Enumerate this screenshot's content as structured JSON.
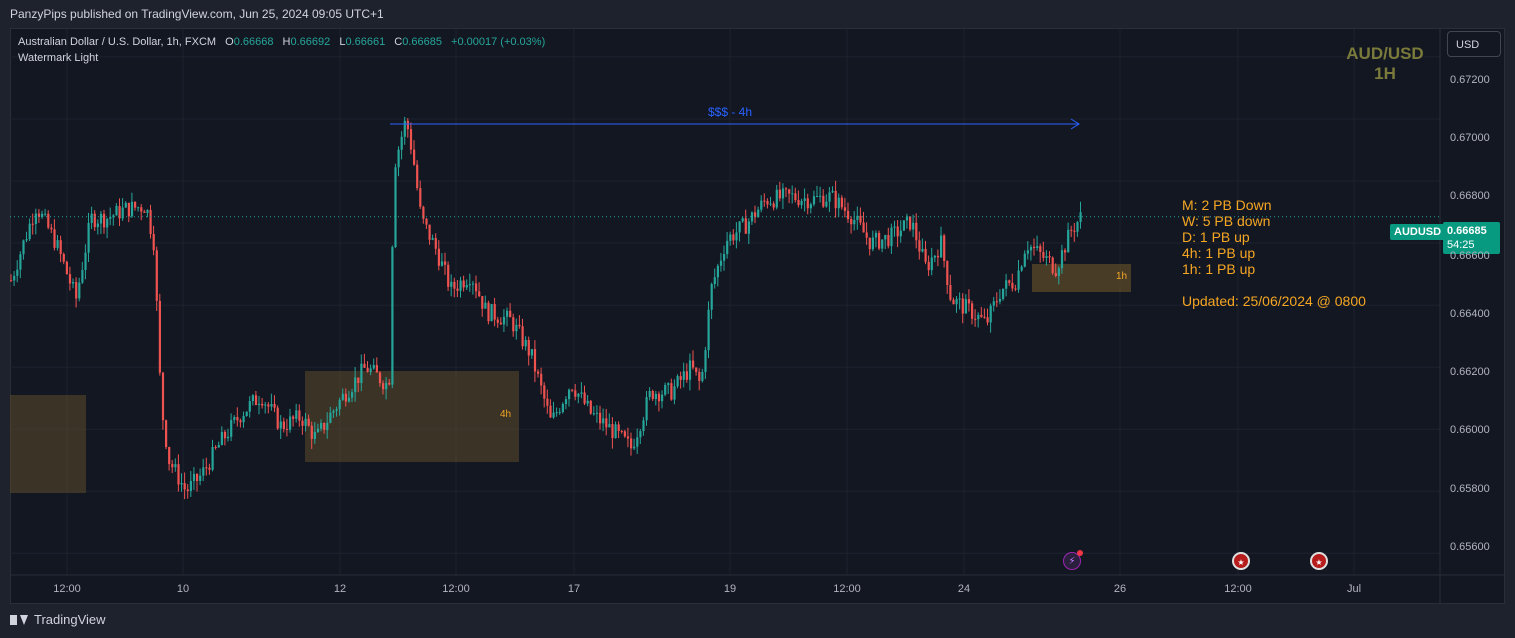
{
  "banner": {
    "text": "PanzyPips published on TradingView.com, Jun 25, 2024 09:05 UTC+1"
  },
  "legend": {
    "symbol": "Australian Dollar / U.S. Dollar, 1h, FXCM",
    "open_key": "O",
    "open": "0.66668",
    "high_key": "H",
    "high": "0.66692",
    "low_key": "L",
    "low": "0.66661",
    "close_key": "C",
    "close": "0.66685",
    "change": "+0.00017 (+0.03%)",
    "indicator": "Watermark Light"
  },
  "watermark": {
    "line1": "AUD/USD",
    "line2": "1H"
  },
  "currency_button": "USD",
  "notes": {
    "lines": [
      "M: 2 PB Down",
      "W: 5 PB down",
      "D: 1 PB up",
      "4h: 1 PB up",
      "1h: 1 PB up"
    ],
    "updated": "Updated: 25/06/2024 @ 0800"
  },
  "price_tag": {
    "symbol": "AUDUSD",
    "price": "0.66685",
    "countdown": "54:25"
  },
  "annotation": {
    "label": "$$$ - 4h"
  },
  "boxes": {
    "box_4h_label": "4h",
    "box_1h_label": "1h"
  },
  "y_axis": [
    "0.67200",
    "0.67000",
    "0.66800",
    "0.66600",
    "0.66400",
    "0.66200",
    "0.66000",
    "0.65800",
    "0.65600"
  ],
  "x_axis": [
    "12:00",
    "10",
    "12",
    "12:00",
    "17",
    "19",
    "12:00",
    "24",
    "26",
    "12:00",
    "Jul"
  ],
  "footer": {
    "brand": "TradingView"
  },
  "colors": {
    "up": "#26a69a",
    "down": "#ef5350",
    "box": "#5c4a2a",
    "annotation": "#2962ff",
    "notes": "#f5a623"
  },
  "chart_data": {
    "type": "candlestick",
    "ylim": [
      0.6553,
      0.6729
    ],
    "price_line": 0.66685,
    "anchors": [
      {
        "x": 0,
        "y": 0.6648
      },
      {
        "x": 25,
        "y": 0.6672
      },
      {
        "x": 45,
        "y": 0.666
      },
      {
        "x": 65,
        "y": 0.6642
      },
      {
        "x": 80,
        "y": 0.6668
      },
      {
        "x": 95,
        "y": 0.6668
      },
      {
        "x": 115,
        "y": 0.6671
      },
      {
        "x": 135,
        "y": 0.6672
      },
      {
        "x": 143,
        "y": 0.666
      },
      {
        "x": 150,
        "y": 0.6608
      },
      {
        "x": 158,
        "y": 0.659
      },
      {
        "x": 175,
        "y": 0.658
      },
      {
        "x": 190,
        "y": 0.6585
      },
      {
        "x": 210,
        "y": 0.6596
      },
      {
        "x": 230,
        "y": 0.6605
      },
      {
        "x": 250,
        "y": 0.6611
      },
      {
        "x": 270,
        "y": 0.6601
      },
      {
        "x": 290,
        "y": 0.6604
      },
      {
        "x": 305,
        "y": 0.6597
      },
      {
        "x": 320,
        "y": 0.6605
      },
      {
        "x": 335,
        "y": 0.6612
      },
      {
        "x": 355,
        "y": 0.662
      },
      {
        "x": 378,
        "y": 0.6614
      },
      {
        "x": 383,
        "y": 0.6685
      },
      {
        "x": 395,
        "y": 0.67
      },
      {
        "x": 402,
        "y": 0.6688
      },
      {
        "x": 410,
        "y": 0.6668
      },
      {
        "x": 425,
        "y": 0.6658
      },
      {
        "x": 440,
        "y": 0.6645
      },
      {
        "x": 460,
        "y": 0.665
      },
      {
        "x": 475,
        "y": 0.6638
      },
      {
        "x": 500,
        "y": 0.6635
      },
      {
        "x": 520,
        "y": 0.6624
      },
      {
        "x": 540,
        "y": 0.6602
      },
      {
        "x": 560,
        "y": 0.6615
      },
      {
        "x": 580,
        "y": 0.6605
      },
      {
        "x": 600,
        "y": 0.66
      },
      {
        "x": 620,
        "y": 0.6594
      },
      {
        "x": 640,
        "y": 0.6612
      },
      {
        "x": 660,
        "y": 0.6612
      },
      {
        "x": 680,
        "y": 0.662
      },
      {
        "x": 690,
        "y": 0.6614
      },
      {
        "x": 700,
        "y": 0.6645
      },
      {
        "x": 715,
        "y": 0.6661
      },
      {
        "x": 735,
        "y": 0.6666
      },
      {
        "x": 755,
        "y": 0.6674
      },
      {
        "x": 780,
        "y": 0.6675
      },
      {
        "x": 800,
        "y": 0.6674
      },
      {
        "x": 820,
        "y": 0.6675
      },
      {
        "x": 840,
        "y": 0.6669
      },
      {
        "x": 860,
        "y": 0.666
      },
      {
        "x": 880,
        "y": 0.6662
      },
      {
        "x": 900,
        "y": 0.6667
      },
      {
        "x": 915,
        "y": 0.6652
      },
      {
        "x": 930,
        "y": 0.666
      },
      {
        "x": 940,
        "y": 0.6642
      },
      {
        "x": 960,
        "y": 0.6638
      },
      {
        "x": 975,
        "y": 0.6634
      },
      {
        "x": 990,
        "y": 0.6645
      },
      {
        "x": 1005,
        "y": 0.6648
      },
      {
        "x": 1015,
        "y": 0.666
      },
      {
        "x": 1030,
        "y": 0.6656
      },
      {
        "x": 1045,
        "y": 0.6652
      },
      {
        "x": 1060,
        "y": 0.6664
      },
      {
        "x": 1070,
        "y": 0.66685
      }
    ]
  }
}
